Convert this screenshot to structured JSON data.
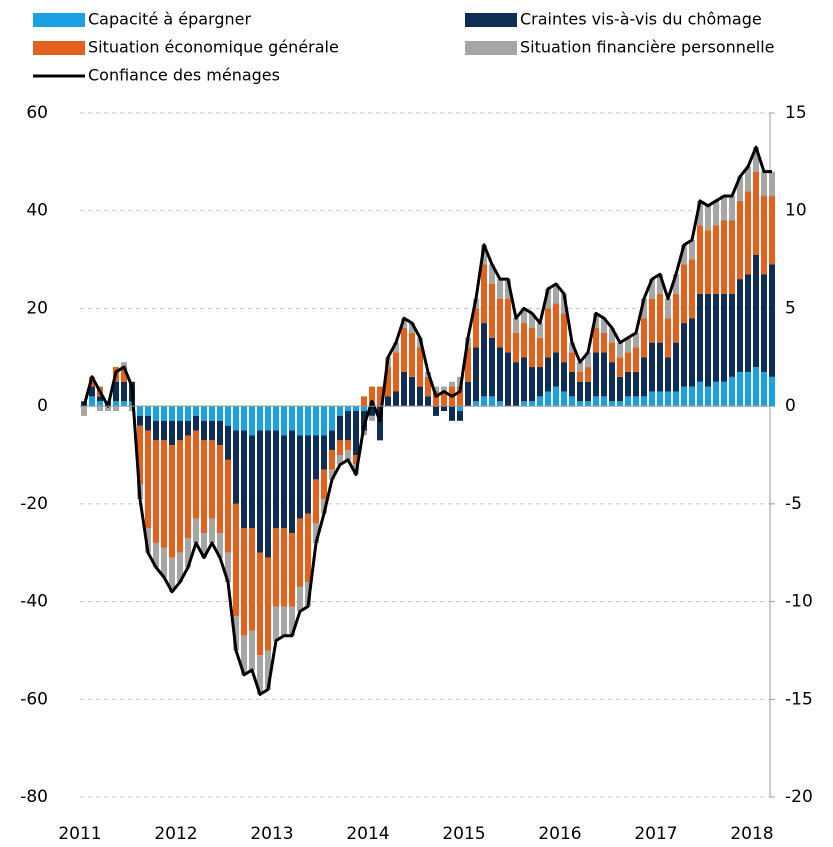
{
  "chart_data": {
    "type": "bar",
    "categories": [
      "2011",
      null,
      null,
      null,
      null,
      null,
      null,
      null,
      null,
      null,
      null,
      null,
      "2012",
      null,
      null,
      null,
      null,
      null,
      null,
      null,
      null,
      null,
      null,
      null,
      "2013",
      null,
      null,
      null,
      null,
      null,
      null,
      null,
      null,
      null,
      null,
      null,
      "2014",
      null,
      null,
      null,
      null,
      null,
      null,
      null,
      null,
      null,
      null,
      null,
      "2015",
      null,
      null,
      null,
      null,
      null,
      null,
      null,
      null,
      null,
      null,
      null,
      "2016",
      null,
      null,
      null,
      null,
      null,
      null,
      null,
      null,
      null,
      null,
      null,
      "2017",
      null,
      null,
      null,
      null,
      null,
      null,
      null,
      null,
      null,
      null,
      null,
      "2018",
      null,
      null
    ],
    "series": [
      {
        "name": "Capacité à épargner",
        "color": "#1ba1e2",
        "values": [
          0,
          2,
          1,
          0,
          1,
          1,
          1,
          -2,
          -2,
          -3,
          -3,
          -3,
          -3,
          -3,
          -2,
          -3,
          -3,
          -3,
          -4,
          -5,
          -5,
          -6,
          -5,
          -5,
          -5,
          -6,
          -5,
          -6,
          -6,
          -6,
          -6,
          -5,
          -2,
          -1,
          -1,
          -1,
          0,
          0,
          0,
          0,
          0,
          0,
          0,
          0,
          0,
          0,
          0,
          -1,
          0,
          1,
          2,
          2,
          1,
          0,
          0,
          1,
          1,
          2,
          3,
          4,
          3,
          2,
          1,
          1,
          2,
          2,
          1,
          1,
          2,
          2,
          2,
          3,
          3,
          3,
          3,
          4,
          4,
          5,
          4,
          5,
          5,
          6,
          7,
          7,
          8,
          7,
          6
        ]
      },
      {
        "name": "Craintes vis-à-vis du chômage",
        "color": "#0d2d52",
        "values": [
          1,
          2,
          1,
          1,
          4,
          4,
          4,
          -2,
          -3,
          -4,
          -4,
          -5,
          -4,
          -3,
          -3,
          -4,
          -4,
          -5,
          -7,
          -15,
          -20,
          -19,
          -25,
          -26,
          -20,
          -19,
          -21,
          -17,
          -16,
          -9,
          -7,
          -4,
          -5,
          -6,
          -9,
          -4,
          -2,
          -7,
          2,
          3,
          7,
          6,
          4,
          2,
          -2,
          -1,
          -3,
          -2,
          5,
          11,
          15,
          12,
          11,
          11,
          9,
          9,
          7,
          6,
          7,
          7,
          6,
          5,
          4,
          4,
          9,
          9,
          8,
          5,
          5,
          5,
          8,
          10,
          10,
          7,
          10,
          13,
          14,
          18,
          19,
          18,
          18,
          17,
          19,
          20,
          23,
          20,
          23
        ]
      },
      {
        "name": "Situation économique générale",
        "color": "#e2621d",
        "values": [
          0,
          2,
          2,
          0,
          3,
          3,
          0,
          -12,
          -20,
          -21,
          -22,
          -23,
          -23,
          -21,
          -18,
          -19,
          -16,
          -18,
          -19,
          -23,
          -22,
          -21,
          -21,
          -19,
          -16,
          -16,
          -15,
          -14,
          -14,
          -9,
          -6,
          -4,
          -3,
          -2,
          -2,
          2,
          4,
          4,
          6,
          8,
          9,
          9,
          8,
          4,
          3,
          3,
          4,
          4,
          7,
          8,
          12,
          11,
          10,
          11,
          6,
          7,
          8,
          6,
          10,
          10,
          10,
          4,
          2,
          3,
          5,
          4,
          4,
          4,
          4,
          5,
          8,
          9,
          10,
          8,
          10,
          12,
          12,
          14,
          13,
          14,
          15,
          15,
          16,
          17,
          17,
          16,
          14
        ]
      },
      {
        "name": "Situation financière personnelle",
        "color": "#a6a6a6",
        "values": [
          -2,
          0,
          -1,
          -1,
          -1,
          1,
          -1,
          -3,
          -5,
          -5,
          -6,
          -7,
          -6,
          -6,
          -5,
          -5,
          -5,
          -5,
          -6,
          -7,
          -8,
          -8,
          -8,
          -8,
          -7,
          -6,
          -6,
          -5,
          -5,
          -4,
          -3,
          -2,
          -2,
          -2,
          -2,
          -1,
          -1,
          0,
          2,
          2,
          2,
          2,
          2,
          1,
          1,
          1,
          1,
          2,
          2,
          2,
          4,
          4,
          4,
          4,
          3,
          3,
          3,
          3,
          4,
          4,
          4,
          2,
          2,
          3,
          3,
          3,
          3,
          3,
          3,
          3,
          4,
          4,
          4,
          4,
          4,
          4,
          4,
          5,
          5,
          5,
          5,
          5,
          5,
          5,
          5,
          5,
          5
        ]
      },
      {
        "name": "Confiance des ménages",
        "color": "#000000",
        "axis": "y2",
        "type": "line",
        "values": [
          0,
          1.5,
          0.75,
          0,
          1.75,
          2,
          1,
          -4.75,
          -7.5,
          -8.25,
          -8.75,
          -9.5,
          -9,
          -8.25,
          -7,
          -7.75,
          -7,
          -7.75,
          -9,
          -12.5,
          -13.75,
          -13.5,
          -14.75,
          -14.5,
          -12,
          -11.75,
          -11.75,
          -10.5,
          -10.25,
          -7,
          -5.5,
          -3.75,
          -3,
          -2.75,
          -3.5,
          -1,
          0.25,
          -0.75,
          2.5,
          3.25,
          4.5,
          4.25,
          3.5,
          1.75,
          0.5,
          0.75,
          0.5,
          0.75,
          3.5,
          5.5,
          8.25,
          7.25,
          6.5,
          6.5,
          4.5,
          5,
          4.75,
          4.25,
          6,
          6.25,
          5.75,
          3.25,
          2.25,
          2.75,
          4.75,
          4.5,
          4,
          3.25,
          3.5,
          3.75,
          5.5,
          6.5,
          6.75,
          5.5,
          6.75,
          8.25,
          8.5,
          10.5,
          10.25,
          10.5,
          10.75,
          10.75,
          11.75,
          12.25,
          13.25,
          12,
          12
        ]
      }
    ],
    "ylim": [
      -80,
      60
    ],
    "yticks": [
      -80,
      -60,
      -40,
      -20,
      0,
      20,
      40,
      60
    ],
    "y2lim": [
      -20,
      15
    ],
    "y2ticks": [
      -20,
      -15,
      -10,
      -5,
      0,
      5,
      10,
      15
    ],
    "grid": true,
    "stacked": true
  }
}
